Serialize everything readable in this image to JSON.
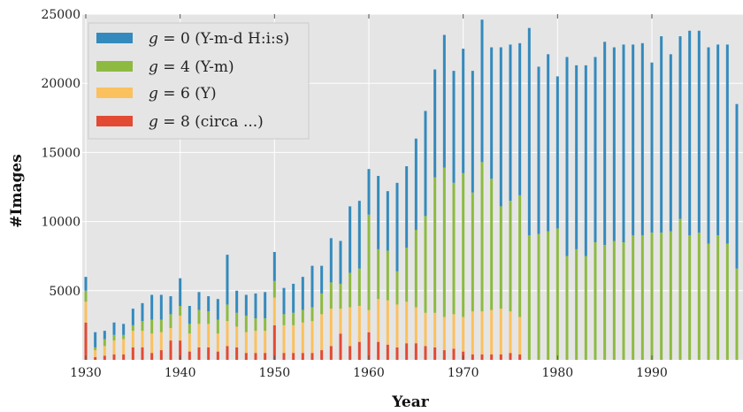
{
  "chart_data": {
    "type": "bar",
    "stacked": true,
    "title": "",
    "xlabel": "Year",
    "ylabel": "#Images",
    "xlim": [
      1930,
      1999
    ],
    "ylim": [
      0,
      25000
    ],
    "x_ticks": [
      "1930",
      "1940",
      "1950",
      "1960",
      "1970",
      "1980",
      "1990"
    ],
    "y_ticks": [
      "5000",
      "10000",
      "15000",
      "20000",
      "25000"
    ],
    "grid": true,
    "legend_position": "top-left",
    "colors": {
      "g0": "#348abd",
      "g4": "#8eba42",
      "g6": "#fbc15e",
      "g8": "#e24a33",
      "plot_background": "#e5e5e5",
      "grid": "#ffffff"
    },
    "legend": [
      {
        "key": "g0",
        "var": "g",
        "rest": " = 0 (Y-m-d H:i:s)"
      },
      {
        "key": "g4",
        "var": "g",
        "rest": " = 4 (Y-m)"
      },
      {
        "key": "g6",
        "var": "g",
        "rest": " = 6 (Y)"
      },
      {
        "key": "g8",
        "var": "g",
        "rest": " = 8 (circa ...)"
      }
    ],
    "x": [
      1930,
      1931,
      1932,
      1933,
      1934,
      1935,
      1936,
      1937,
      1938,
      1939,
      1940,
      1941,
      1942,
      1943,
      1944,
      1945,
      1946,
      1947,
      1948,
      1949,
      1950,
      1951,
      1952,
      1953,
      1954,
      1955,
      1956,
      1957,
      1958,
      1959,
      1960,
      1961,
      1962,
      1963,
      1964,
      1965,
      1966,
      1967,
      1968,
      1969,
      1970,
      1971,
      1972,
      1973,
      1974,
      1975,
      1976,
      1977,
      1978,
      1979,
      1980,
      1981,
      1982,
      1983,
      1984,
      1985,
      1986,
      1987,
      1988,
      1989,
      1990,
      1991,
      1992,
      1993,
      1994,
      1995,
      1996,
      1997,
      1998,
      1999
    ],
    "series": [
      {
        "name": "g = 8 (circa ...)",
        "key": "g8",
        "values": [
          2700,
          200,
          300,
          400,
          400,
          900,
          900,
          500,
          700,
          1400,
          1400,
          600,
          900,
          900,
          600,
          1000,
          900,
          500,
          500,
          500,
          2500,
          500,
          500,
          500,
          500,
          700,
          1000,
          1900,
          1000,
          1300,
          2000,
          1300,
          1100,
          900,
          1200,
          1200,
          1000,
          900,
          700,
          800,
          600,
          400,
          400,
          400,
          400,
          500,
          400,
          0,
          0,
          0,
          0,
          0,
          0,
          0,
          0,
          0,
          0,
          0,
          0,
          0,
          0,
          0,
          0,
          0,
          0,
          0,
          0,
          0,
          0,
          0
        ]
      },
      {
        "name": "g = 6 (Y)",
        "key": "g6",
        "values": [
          1500,
          500,
          700,
          1000,
          1100,
          1200,
          1200,
          1400,
          1300,
          900,
          1800,
          1300,
          1700,
          1700,
          1300,
          1800,
          1500,
          1500,
          1600,
          1600,
          2000,
          2000,
          2000,
          2200,
          2300,
          2600,
          2700,
          1800,
          2800,
          2600,
          1600,
          3100,
          3200,
          3100,
          3000,
          2600,
          2400,
          2500,
          2400,
          2500,
          2500,
          3100,
          3100,
          3200,
          3300,
          3000,
          2700,
          0,
          0,
          0,
          0,
          0,
          0,
          0,
          0,
          0,
          0,
          0,
          0,
          0,
          0,
          0,
          0,
          0,
          0,
          0,
          0,
          0,
          0,
          0
        ]
      },
      {
        "name": "g = 4 (Y-m)",
        "key": "g4",
        "values": [
          800,
          200,
          500,
          400,
          300,
          400,
          700,
          1000,
          900,
          1000,
          700,
          700,
          1000,
          900,
          1000,
          1200,
          1000,
          1200,
          900,
          900,
          1200,
          800,
          900,
          900,
          1000,
          1500,
          1900,
          1800,
          2500,
          2700,
          6900,
          3600,
          3600,
          2400,
          3900,
          5600,
          7000,
          9800,
          10800,
          9500,
          10400,
          8600,
          10800,
          9500,
          7400,
          8000,
          8800,
          9000,
          9100,
          9300,
          9500,
          7500,
          8000,
          7500,
          8500,
          8300,
          8600,
          8500,
          9000,
          9000,
          9200,
          9200,
          9300,
          10200,
          9000,
          9200,
          8400,
          9000,
          8400,
          6600
        ]
      },
      {
        "name": "g = 0 (Y-m-d H:i:s)",
        "key": "g0",
        "values": [
          1000,
          1100,
          600,
          900,
          800,
          1200,
          1300,
          1800,
          1800,
          1300,
          2000,
          1300,
          1300,
          1100,
          1500,
          3600,
          1600,
          1500,
          1800,
          1900,
          2100,
          1900,
          2100,
          2400,
          3000,
          2000,
          3200,
          3100,
          4800,
          4900,
          3300,
          5300,
          4300,
          6400,
          5900,
          6600,
          7600,
          7800,
          9600,
          8100,
          9000,
          8800,
          10300,
          9500,
          11500,
          11300,
          11000,
          15000,
          12100,
          12800,
          11000,
          14400,
          13300,
          13800,
          13400,
          14700,
          14000,
          14300,
          13800,
          13900,
          12300,
          14200,
          12800,
          13200,
          14800,
          14600,
          14200,
          13800,
          14400,
          11900
        ]
      }
    ]
  }
}
